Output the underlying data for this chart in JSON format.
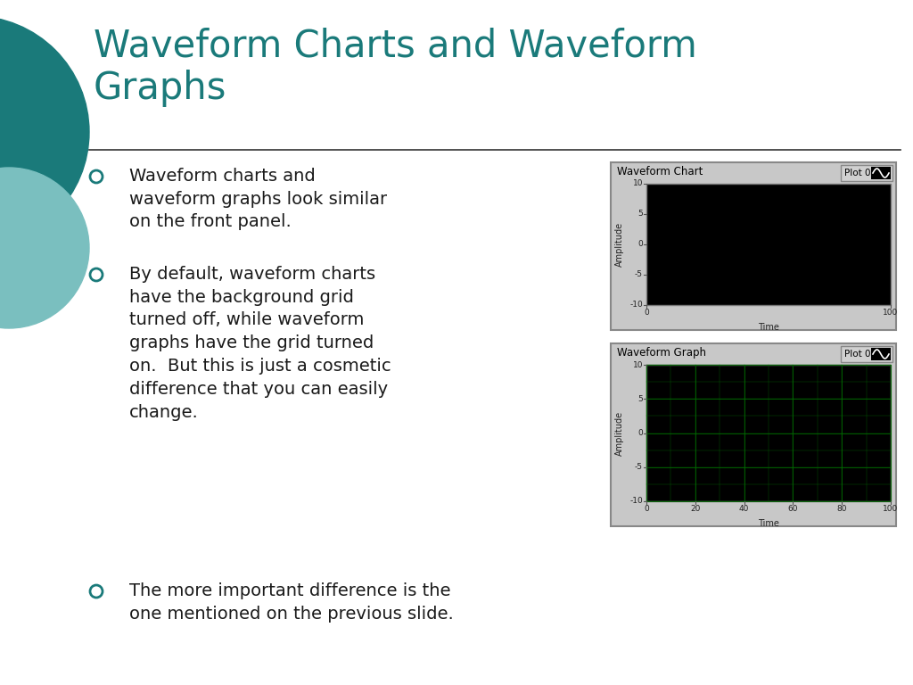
{
  "title_line1": "Waveform Charts and Waveform",
  "title_line2": "Graphs",
  "title_color": "#1a7a7a",
  "background_color": "#ffffff",
  "bullet_color": "#1a7a7a",
  "bullet_points": [
    "Waveform charts and\nwaveform graphs look similar\non the front panel.",
    "By default, waveform charts\nhave the background grid\nturned off, while waveform\ngraphs have the grid turned\non.  But this is just a cosmetic\ndifference that you can easily\nchange.",
    "The more important difference is the\none mentioned on the previous slide."
  ],
  "chart1_label": "Waveform Chart",
  "chart2_label": "Waveform Graph",
  "plot_label": "Plot 0",
  "chart_bg_color": "#000000",
  "chart_frame_color": "#c0c0c0",
  "grid_color": "#006600",
  "axis_label_amplitude": "Amplitude",
  "axis_label_time": "Time",
  "yticks": [
    -10,
    -5,
    0,
    5,
    10
  ],
  "xticks1": [
    0,
    100
  ],
  "xticks2": [
    0,
    20,
    40,
    60,
    80,
    100
  ],
  "decoration_color1": "#1a7a7a",
  "decoration_color2": "#7abfbf",
  "title_fontsize": 30,
  "body_fontsize": 14,
  "panel_bg": "#c8c8c8",
  "panel_inner_bg": "#d0d0d0"
}
